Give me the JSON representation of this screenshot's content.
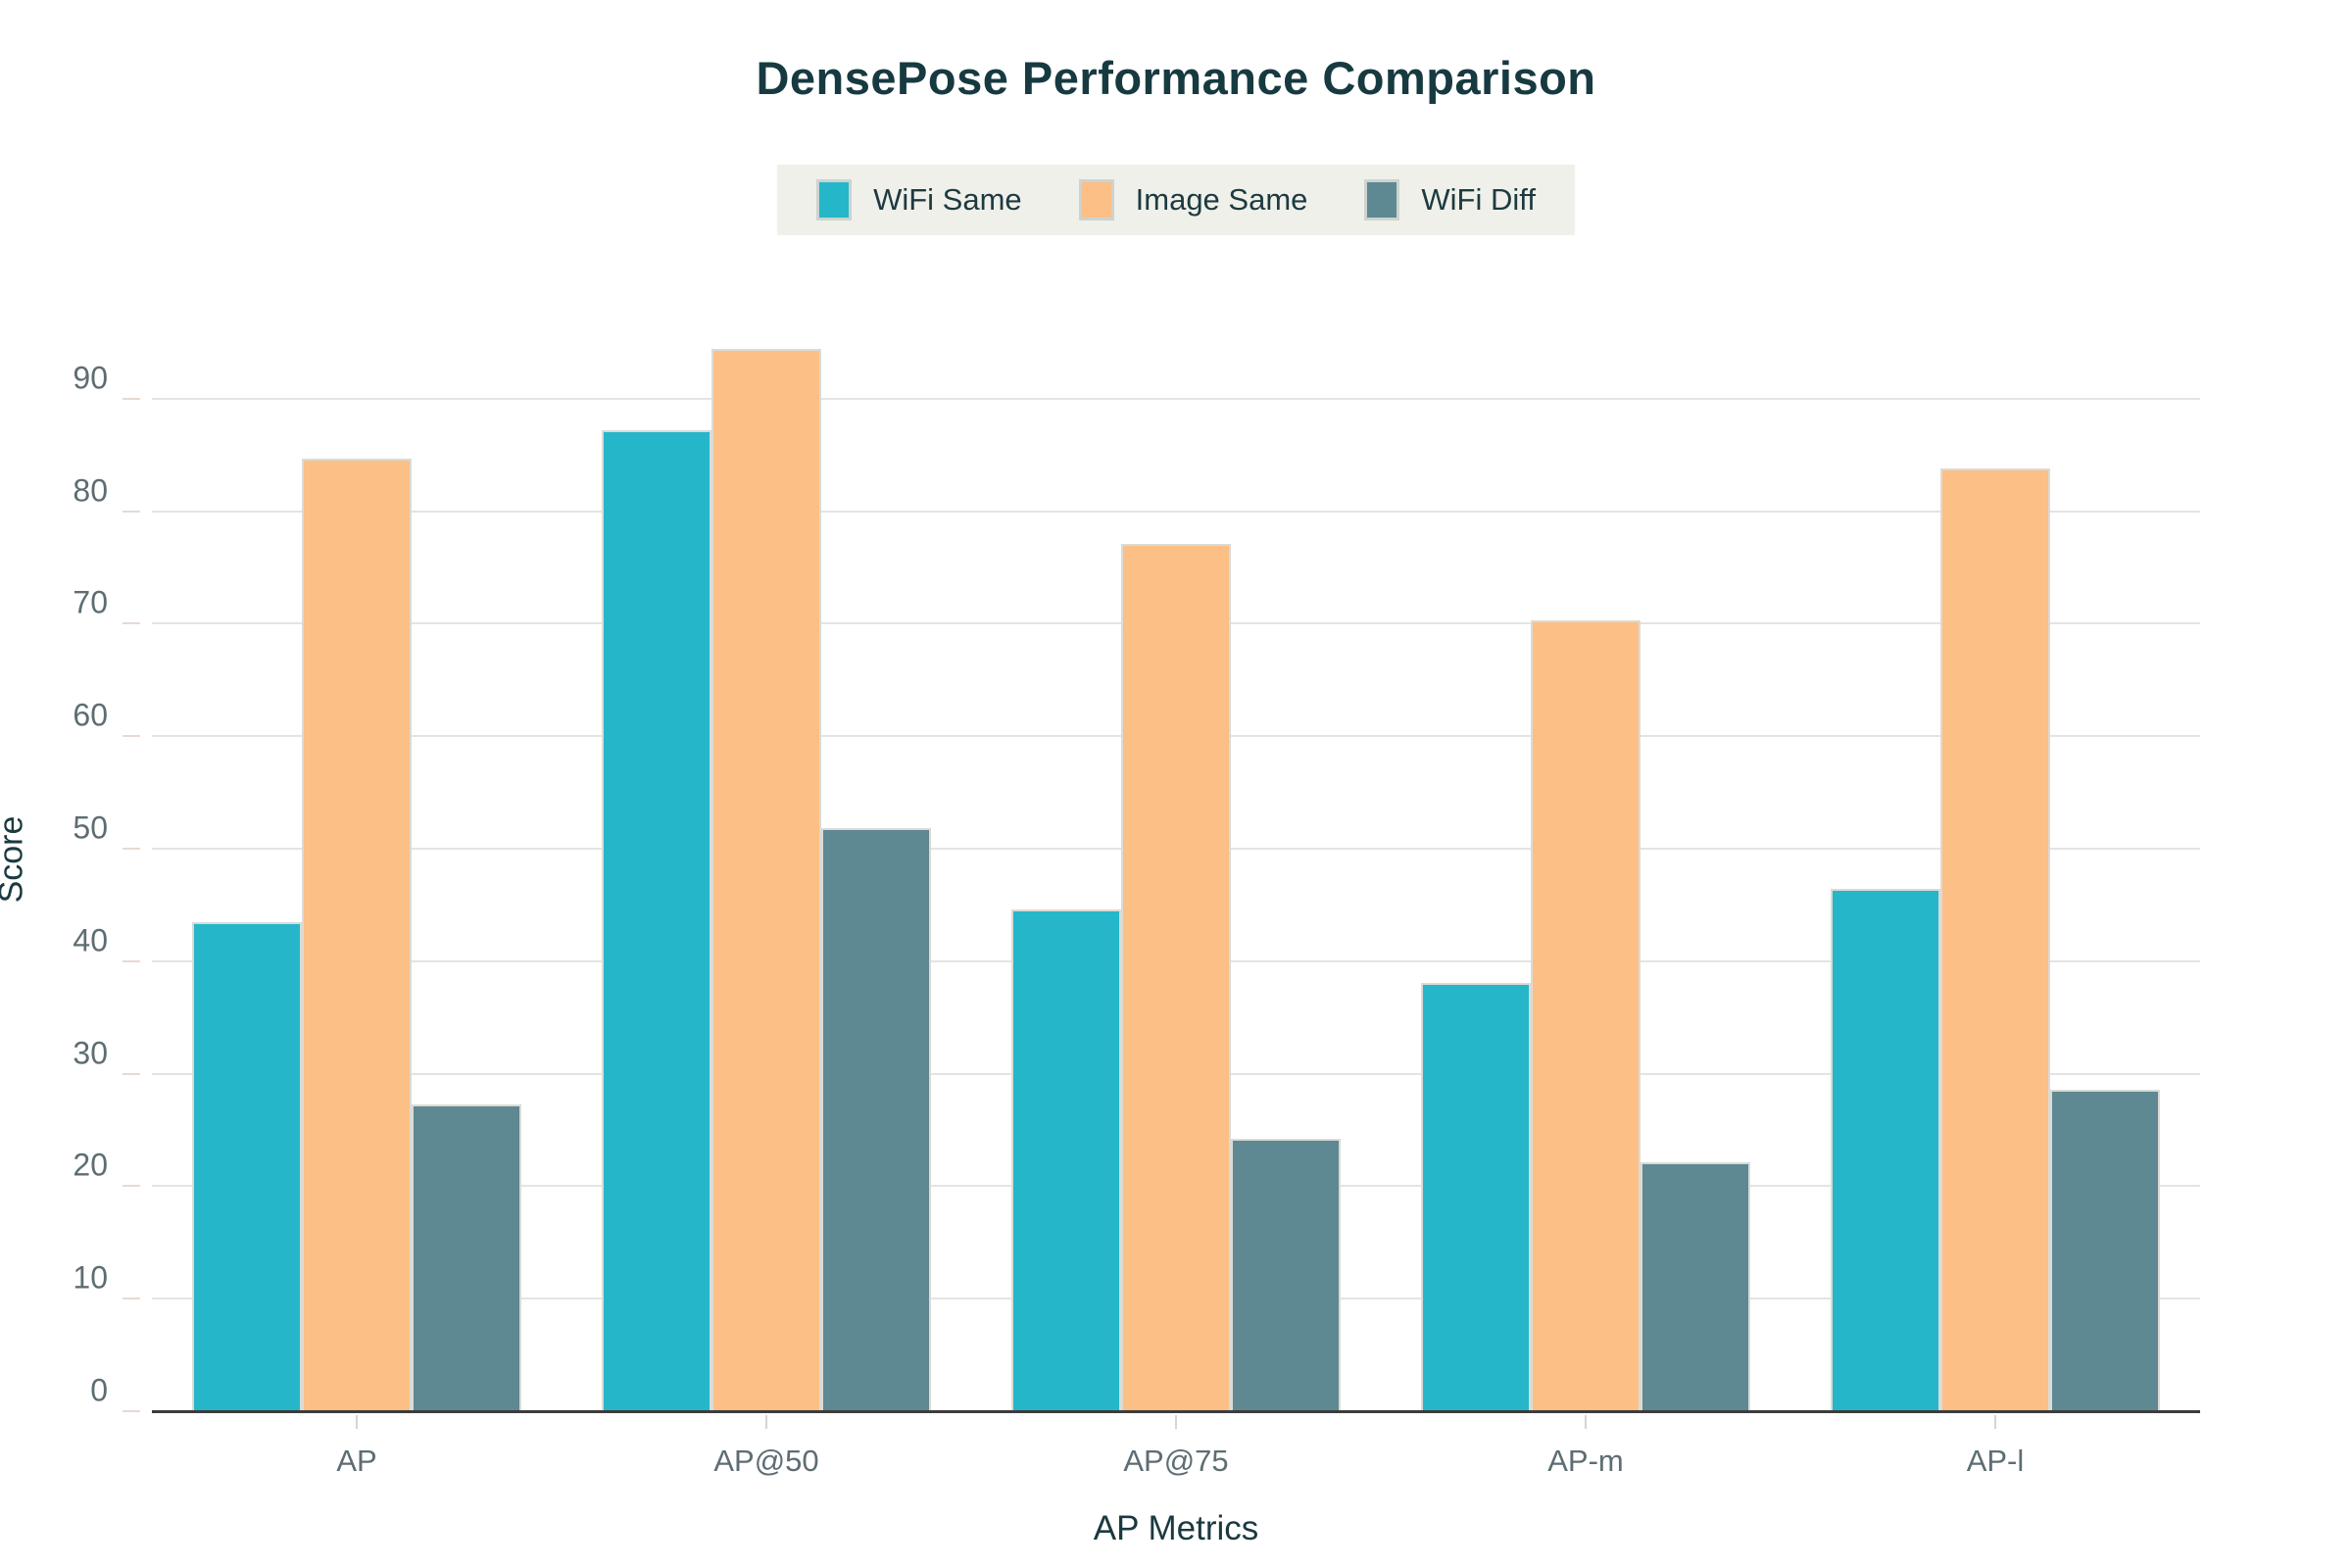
{
  "chart_data": {
    "type": "bar",
    "title": "DensePose Performance Comparison",
    "xlabel": "AP Metrics",
    "ylabel": "Score",
    "categories": [
      "AP",
      "AP@50",
      "AP@75",
      "AP-m",
      "AP-l"
    ],
    "series": [
      {
        "name": "WiFi Same",
        "color": "#25b6c9",
        "values": [
          43.5,
          87.2,
          44.6,
          38.1,
          46.4
        ]
      },
      {
        "name": "Image Same",
        "color": "#fcbf85",
        "values": [
          84.7,
          94.4,
          77.1,
          70.3,
          83.8
        ]
      },
      {
        "name": "WiFi Diff",
        "color": "#5e8892",
        "values": [
          27.3,
          51.8,
          24.2,
          22.1,
          28.6
        ]
      }
    ],
    "ylim": [
      0,
      98
    ],
    "yticks": [
      0,
      10,
      20,
      30,
      40,
      50,
      60,
      70,
      80,
      90
    ],
    "grid": true,
    "legend_position": "top",
    "colors": {
      "title_text": "#173a41",
      "axis_title_text": "#1b3a40",
      "tick_text": "#5e6d73",
      "gridline": "#e4e4e2",
      "axis_line": "#3c3c3c",
      "legend_background": "#eff0ea"
    }
  }
}
